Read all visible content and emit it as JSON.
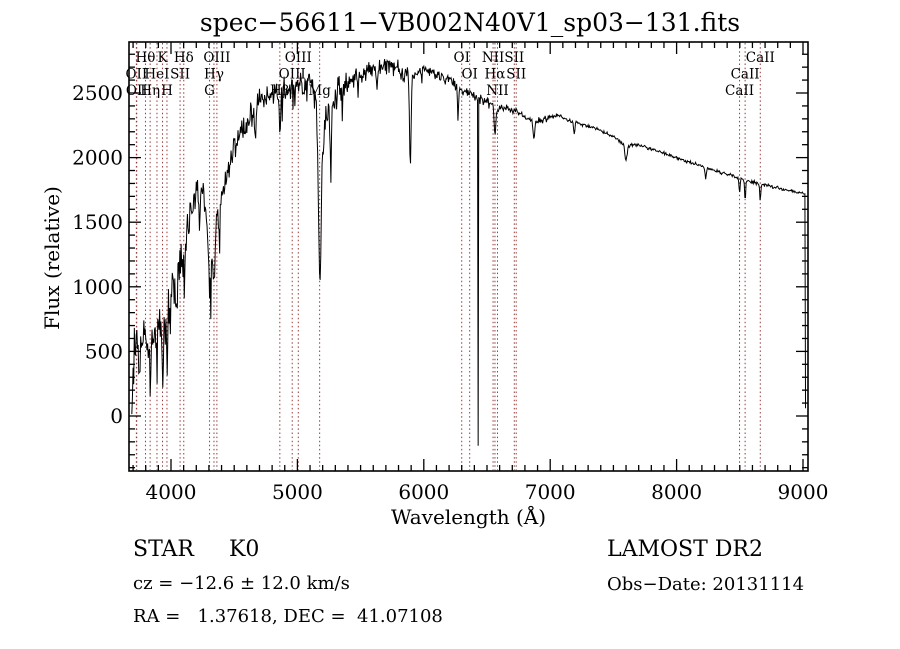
{
  "chart_data": {
    "type": "line",
    "title": "spec−56611−VB002N40V1_sp03−131.fits",
    "xlabel": "Wavelength (Å)",
    "ylabel": "Flux (relative)",
    "xlim": [
      3668,
      9040
    ],
    "ylim": [
      -426,
      2895
    ],
    "xticks": [
      4000,
      5000,
      6000,
      7000,
      8000,
      9000
    ],
    "yticks": [
      0,
      500,
      1000,
      1500,
      2000,
      2500
    ],
    "x_minor_step": 100,
    "y_minor_step": 100,
    "grid": false,
    "curve_color": "#000000",
    "line_marker_color": "#963C3C",
    "spectral_lines": [
      {
        "label": "Hθ",
        "wavelength": 3798,
        "row": 1
      },
      {
        "label": "K",
        "wavelength": 3933,
        "row": 1
      },
      {
        "label": "Hδ",
        "wavelength": 4101,
        "row": 1
      },
      {
        "label": "OIII",
        "wavelength": 4363,
        "row": 1
      },
      {
        "label": "OIII",
        "wavelength": 5007,
        "row": 1
      },
      {
        "label": "OI",
        "wavelength": 6300,
        "row": 1
      },
      {
        "label": "NII",
        "wavelength": 6548,
        "row": 1
      },
      {
        "label": "SII",
        "wavelength": 6716,
        "row": 1
      },
      {
        "label": "CaII",
        "wavelength": 8662,
        "row": 1
      },
      {
        "label": "OII",
        "wavelength": 3726,
        "row": 2
      },
      {
        "label": "HeI",
        "wavelength": 3889,
        "row": 2
      },
      {
        "label": "SII",
        "wavelength": 4072,
        "row": 2
      },
      {
        "label": "Hγ",
        "wavelength": 4340,
        "row": 2
      },
      {
        "label": "OIII",
        "wavelength": 4959,
        "row": 2
      },
      {
        "label": "OI",
        "wavelength": 6363,
        "row": 2
      },
      {
        "label": "Hα",
        "wavelength": 6563,
        "row": 2
      },
      {
        "label": "SII",
        "wavelength": 6731,
        "row": 2
      },
      {
        "label": "CaII",
        "wavelength": 8542,
        "row": 2
      },
      {
        "label": "OII",
        "wavelength": 3729,
        "row": 3
      },
      {
        "label": "Hη",
        "wavelength": 3835,
        "row": 3
      },
      {
        "label": "H",
        "wavelength": 3968,
        "row": 3
      },
      {
        "label": "G",
        "wavelength": 4305,
        "row": 3
      },
      {
        "label": "Hβ",
        "wavelength": 4861,
        "row": 3
      },
      {
        "label": "Mg",
        "wavelength": 5176,
        "row": 3
      },
      {
        "label": "NII",
        "wavelength": 6583,
        "row": 3
      },
      {
        "label": "CaII",
        "wavelength": 8498,
        "row": 3
      }
    ],
    "envelope": [
      [
        3690,
        60
      ],
      [
        3700,
        420
      ],
      [
        3720,
        560
      ],
      [
        3750,
        600
      ],
      [
        3800,
        580
      ],
      [
        3850,
        640
      ],
      [
        3900,
        700
      ],
      [
        3950,
        720
      ],
      [
        4000,
        950
      ],
      [
        4050,
        1150
      ],
      [
        4100,
        1350
      ],
      [
        4150,
        1570
      ],
      [
        4200,
        1750
      ],
      [
        4250,
        1720
      ],
      [
        4300,
        1400
      ],
      [
        4330,
        1300
      ],
      [
        4360,
        1520
      ],
      [
        4400,
        1700
      ],
      [
        4500,
        2050
      ],
      [
        4600,
        2280
      ],
      [
        4700,
        2430
      ],
      [
        4800,
        2480
      ],
      [
        4900,
        2520
      ],
      [
        5000,
        2560
      ],
      [
        5100,
        2600
      ],
      [
        5160,
        2400
      ],
      [
        5185,
        1900
      ],
      [
        5210,
        2250
      ],
      [
        5300,
        2450
      ],
      [
        5400,
        2600
      ],
      [
        5500,
        2650
      ],
      [
        5600,
        2680
      ],
      [
        5700,
        2720
      ],
      [
        5800,
        2690
      ],
      [
        5900,
        2620
      ],
      [
        6000,
        2680
      ],
      [
        6100,
        2650
      ],
      [
        6200,
        2600
      ],
      [
        6300,
        2520
      ],
      [
        6400,
        2480
      ],
      [
        6500,
        2430
      ],
      [
        6563,
        2380
      ],
      [
        6650,
        2390
      ],
      [
        6750,
        2350
      ],
      [
        6870,
        2280
      ],
      [
        6950,
        2290
      ],
      [
        7050,
        2330
      ],
      [
        7200,
        2270
      ],
      [
        7350,
        2230
      ],
      [
        7500,
        2160
      ],
      [
        7600,
        2090
      ],
      [
        7700,
        2100
      ],
      [
        7850,
        2050
      ],
      [
        8000,
        2000
      ],
      [
        8150,
        1950
      ],
      [
        8300,
        1900
      ],
      [
        8450,
        1855
      ],
      [
        8600,
        1810
      ],
      [
        8750,
        1775
      ],
      [
        8900,
        1745
      ],
      [
        9020,
        1715
      ]
    ],
    "noise_segments": [
      {
        "from": 3690,
        "to": 4120,
        "amp": 270
      },
      {
        "from": 4120,
        "to": 4400,
        "amp": 170
      },
      {
        "from": 4400,
        "to": 5120,
        "amp": 120
      },
      {
        "from": 5120,
        "to": 5400,
        "amp": 170
      },
      {
        "from": 5400,
        "to": 5900,
        "amp": 80
      },
      {
        "from": 5900,
        "to": 6600,
        "amp": 55
      },
      {
        "from": 6600,
        "to": 7000,
        "amp": 35
      },
      {
        "from": 7000,
        "to": 9030,
        "amp": 16
      }
    ],
    "absorption_features": [
      {
        "center": 3750,
        "width": 5,
        "depth": 200
      },
      {
        "center": 3835,
        "width": 5,
        "depth": 250
      },
      {
        "center": 3889,
        "width": 5,
        "depth": 250
      },
      {
        "center": 3934,
        "width": 6,
        "depth": 400
      },
      {
        "center": 3968,
        "width": 6,
        "depth": 400
      },
      {
        "center": 4045,
        "width": 5,
        "depth": 350
      },
      {
        "center": 4101,
        "width": 7,
        "depth": 320
      },
      {
        "center": 4227,
        "width": 5,
        "depth": 300
      },
      {
        "center": 4305,
        "width": 10,
        "depth": 400
      },
      {
        "center": 4340,
        "width": 7,
        "depth": 330
      },
      {
        "center": 4383,
        "width": 5,
        "depth": 280
      },
      {
        "center": 4668,
        "width": 5,
        "depth": 220
      },
      {
        "center": 4861,
        "width": 7,
        "depth": 260
      },
      {
        "center": 5175,
        "width": 11,
        "depth": 950
      },
      {
        "center": 5265,
        "width": 6,
        "depth": 420
      },
      {
        "center": 5630,
        "width": 5,
        "depth": 160
      },
      {
        "center": 5893,
        "width": 6,
        "depth": 680
      },
      {
        "center": 6270,
        "width": 4,
        "depth": 260
      },
      {
        "center": 6563,
        "width": 6,
        "depth": 230
      },
      {
        "center": 6870,
        "width": 6,
        "depth": 130
      },
      {
        "center": 7190,
        "width": 5,
        "depth": 90
      },
      {
        "center": 7600,
        "width": 9,
        "depth": 110
      },
      {
        "center": 8230,
        "width": 5,
        "depth": 80
      },
      {
        "center": 8498,
        "width": 4,
        "depth": 120
      },
      {
        "center": 8542,
        "width": 4,
        "depth": 160
      },
      {
        "center": 8662,
        "width": 4,
        "depth": 130
      }
    ],
    "artifact_spikes": [
      {
        "wavelength": 6430,
        "flux": -230
      },
      {
        "wavelength": 9024,
        "flux": 60
      }
    ]
  },
  "annotations": {
    "left": [
      {
        "text": "STAR     K0"
      },
      {
        "text": "cz = −12.6 ± 12.0 km/s"
      },
      {
        "text": "RA =   1.37618, DEC =  41.07108"
      }
    ],
    "right": [
      {
        "text": "LAMOST DR2"
      },
      {
        "text": "Obs−Date: 20131114"
      }
    ]
  }
}
